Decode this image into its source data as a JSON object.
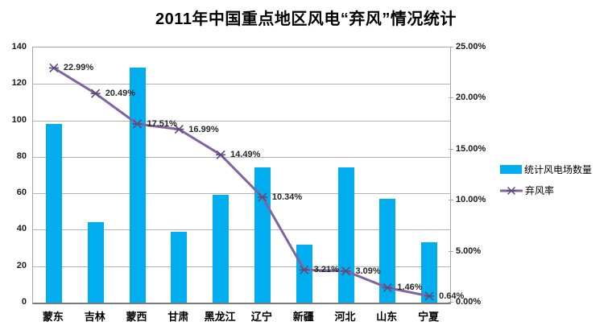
{
  "chart_data": {
    "type": "combo",
    "title": "2011年中国重点地区风电“弃风”情况统计",
    "categories": [
      "蒙东",
      "吉林",
      "蒙西",
      "甘肃",
      "黑龙江",
      "辽宁",
      "新疆",
      "河北",
      "山东",
      "宁夏"
    ],
    "series": [
      {
        "name": "统计风电场数量",
        "type": "bar",
        "axis": "left",
        "color": "#00AEEF",
        "values": [
          98,
          44,
          129,
          39,
          59,
          74,
          32,
          74,
          57,
          33
        ]
      },
      {
        "name": "弃风率",
        "type": "line",
        "axis": "right",
        "color": "#8064A2",
        "marker": "star",
        "marker_color": "#604A7B",
        "values": [
          22.99,
          20.49,
          17.51,
          16.99,
          14.49,
          10.34,
          3.21,
          3.09,
          1.46,
          0.64
        ],
        "labels": [
          "22.99%",
          "20.49%",
          "17.51%",
          "16.99%",
          "14.49%",
          "10.34%",
          "3.21%",
          "3.09%",
          "1.46%",
          "0.64%"
        ]
      }
    ],
    "left_axis": {
      "min": 0,
      "max": 140,
      "step": 20,
      "ticks": [
        "140",
        "120",
        "100",
        "80",
        "60",
        "40",
        "20",
        "0"
      ]
    },
    "right_axis": {
      "min": 0,
      "max": 25,
      "step": 5,
      "ticks": [
        "25.00%",
        "20.00%",
        "15.00%",
        "10.00%",
        "5.00%",
        "0.00%"
      ]
    },
    "legend": {
      "position": "right",
      "entries": [
        "统计风电场数量",
        "弃风率"
      ]
    },
    "grid": true
  },
  "colors": {
    "bar": "#00AEEF",
    "line": "#8064A2",
    "marker": "#604A7B",
    "gridline": "#b3b3b3",
    "plot_border": "#A6A6A6",
    "text": "#1a1a1a"
  }
}
